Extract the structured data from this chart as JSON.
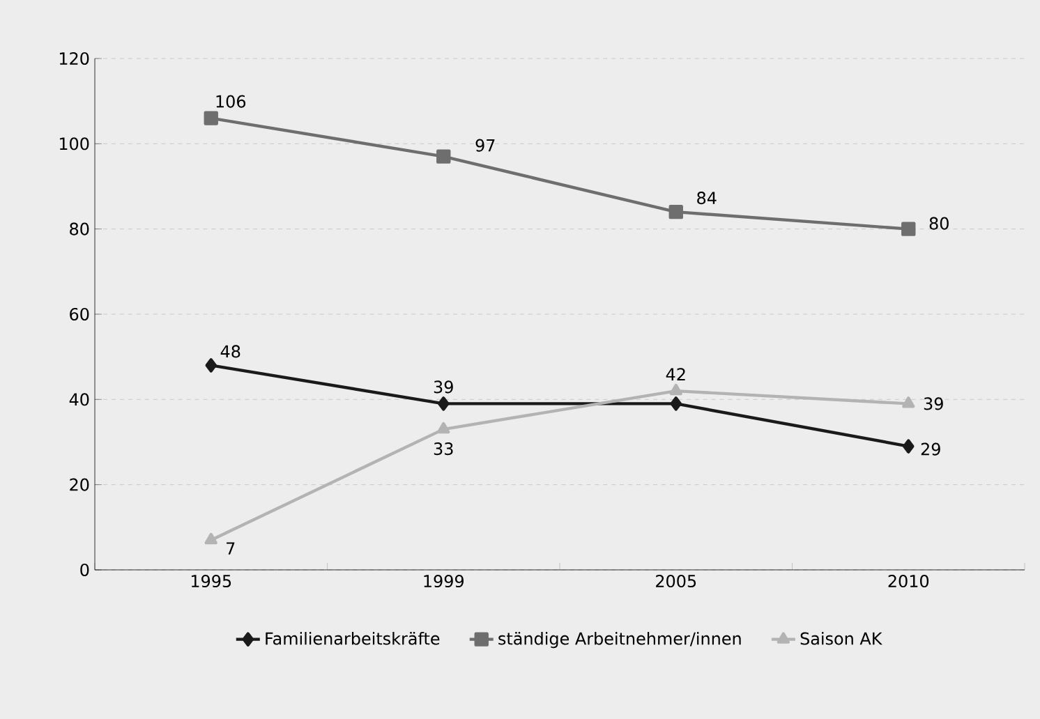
{
  "chart_data": {
    "type": "line",
    "categories": [
      "1995",
      "1999",
      "2005",
      "2010"
    ],
    "series": [
      {
        "name": "Familienarbeitskräfte",
        "color": "#1a1a1a",
        "marker": "diamond",
        "values": [
          48,
          39,
          39,
          29
        ],
        "value_labels": [
          "48",
          "39",
          null,
          "29"
        ]
      },
      {
        "name": "ständige Arbeitnehmer/innen",
        "color": "#6e6e6e",
        "marker": "square",
        "values": [
          106,
          97,
          84,
          80
        ],
        "value_labels": [
          "106",
          "97",
          "84",
          "80"
        ]
      },
      {
        "name": "Saison AK",
        "color": "#b3b3b3",
        "marker": "triangle",
        "values": [
          7,
          33,
          42,
          39
        ],
        "value_labels": [
          "7",
          "33",
          "42",
          "39"
        ]
      }
    ],
    "ylim": [
      0,
      120
    ],
    "yticks": [
      0,
      20,
      40,
      60,
      80,
      100,
      120
    ],
    "grid": "y",
    "legend": "bottom",
    "line_style": "solid"
  }
}
